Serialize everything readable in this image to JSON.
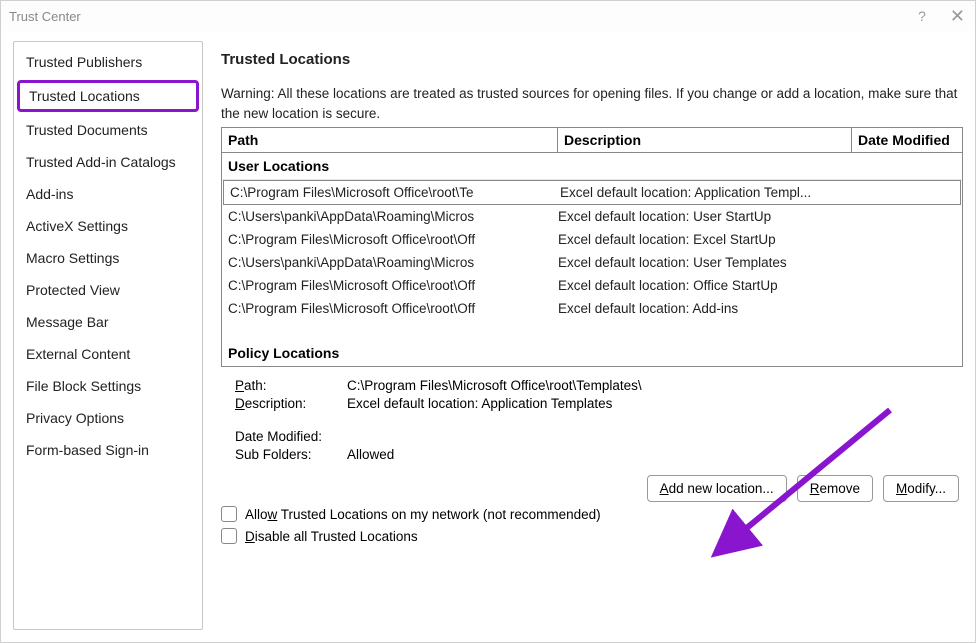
{
  "window": {
    "title": "Trust Center"
  },
  "sidebar": {
    "items": [
      {
        "label": "Trusted Publishers",
        "selected": false
      },
      {
        "label": "Trusted Locations",
        "selected": true
      },
      {
        "label": "Trusted Documents",
        "selected": false
      },
      {
        "label": "Trusted Add-in Catalogs",
        "selected": false
      },
      {
        "label": "Add-ins",
        "selected": false
      },
      {
        "label": "ActiveX Settings",
        "selected": false
      },
      {
        "label": "Macro Settings",
        "selected": false
      },
      {
        "label": "Protected View",
        "selected": false
      },
      {
        "label": "Message Bar",
        "selected": false
      },
      {
        "label": "External Content",
        "selected": false
      },
      {
        "label": "File Block Settings",
        "selected": false
      },
      {
        "label": "Privacy Options",
        "selected": false
      },
      {
        "label": "Form-based Sign-in",
        "selected": false
      }
    ]
  },
  "content": {
    "heading": "Trusted Locations",
    "warning": "Warning: All these locations are treated as trusted sources for opening files.  If you change or add a location, make sure that the new location is secure.",
    "columns": {
      "path": "Path",
      "description": "Description",
      "date": "Date Modified"
    },
    "section_user": "User Locations",
    "section_policy": "Policy Locations",
    "rows": [
      {
        "path": "C:\\Program Files\\Microsoft Office\\root\\Te",
        "desc": "Excel default location: Application Templ...",
        "selected": true
      },
      {
        "path": "C:\\Users\\panki\\AppData\\Roaming\\Micros",
        "desc": "Excel default location: User StartUp",
        "selected": false
      },
      {
        "path": "C:\\Program Files\\Microsoft Office\\root\\Off",
        "desc": "Excel default location: Excel StartUp",
        "selected": false
      },
      {
        "path": "C:\\Users\\panki\\AppData\\Roaming\\Micros",
        "desc": "Excel default location: User Templates",
        "selected": false
      },
      {
        "path": "C:\\Program Files\\Microsoft Office\\root\\Off",
        "desc": "Excel default location: Office StartUp",
        "selected": false
      },
      {
        "path": "C:\\Program Files\\Microsoft Office\\root\\Off",
        "desc": "Excel default location: Add-ins",
        "selected": false
      }
    ],
    "details": {
      "path_label": "Path:",
      "path_ul": "P",
      "path_val": "C:\\Program Files\\Microsoft Office\\root\\Templates\\",
      "desc_label": "Description:",
      "desc_ul": "D",
      "desc_val": "Excel default location: Application Templates",
      "date_label": "Date Modified:",
      "date_val": "",
      "sub_label": "Sub Folders:",
      "sub_val": "Allowed"
    },
    "buttons": {
      "add": "Add new location...",
      "add_ul": "A",
      "remove": "Remove",
      "remove_ul": "R",
      "modify": "Modify...",
      "modify_ul": "M"
    },
    "checkboxes": {
      "allow_network": "Allow Trusted Locations on my network (not recommended)",
      "allow_ul": "w",
      "disable_all": "Disable all Trusted Locations",
      "disable_ul": "D"
    }
  },
  "annotation": {
    "arrow_color": "#8a15cf",
    "highlight_color": "#8a15cf"
  }
}
